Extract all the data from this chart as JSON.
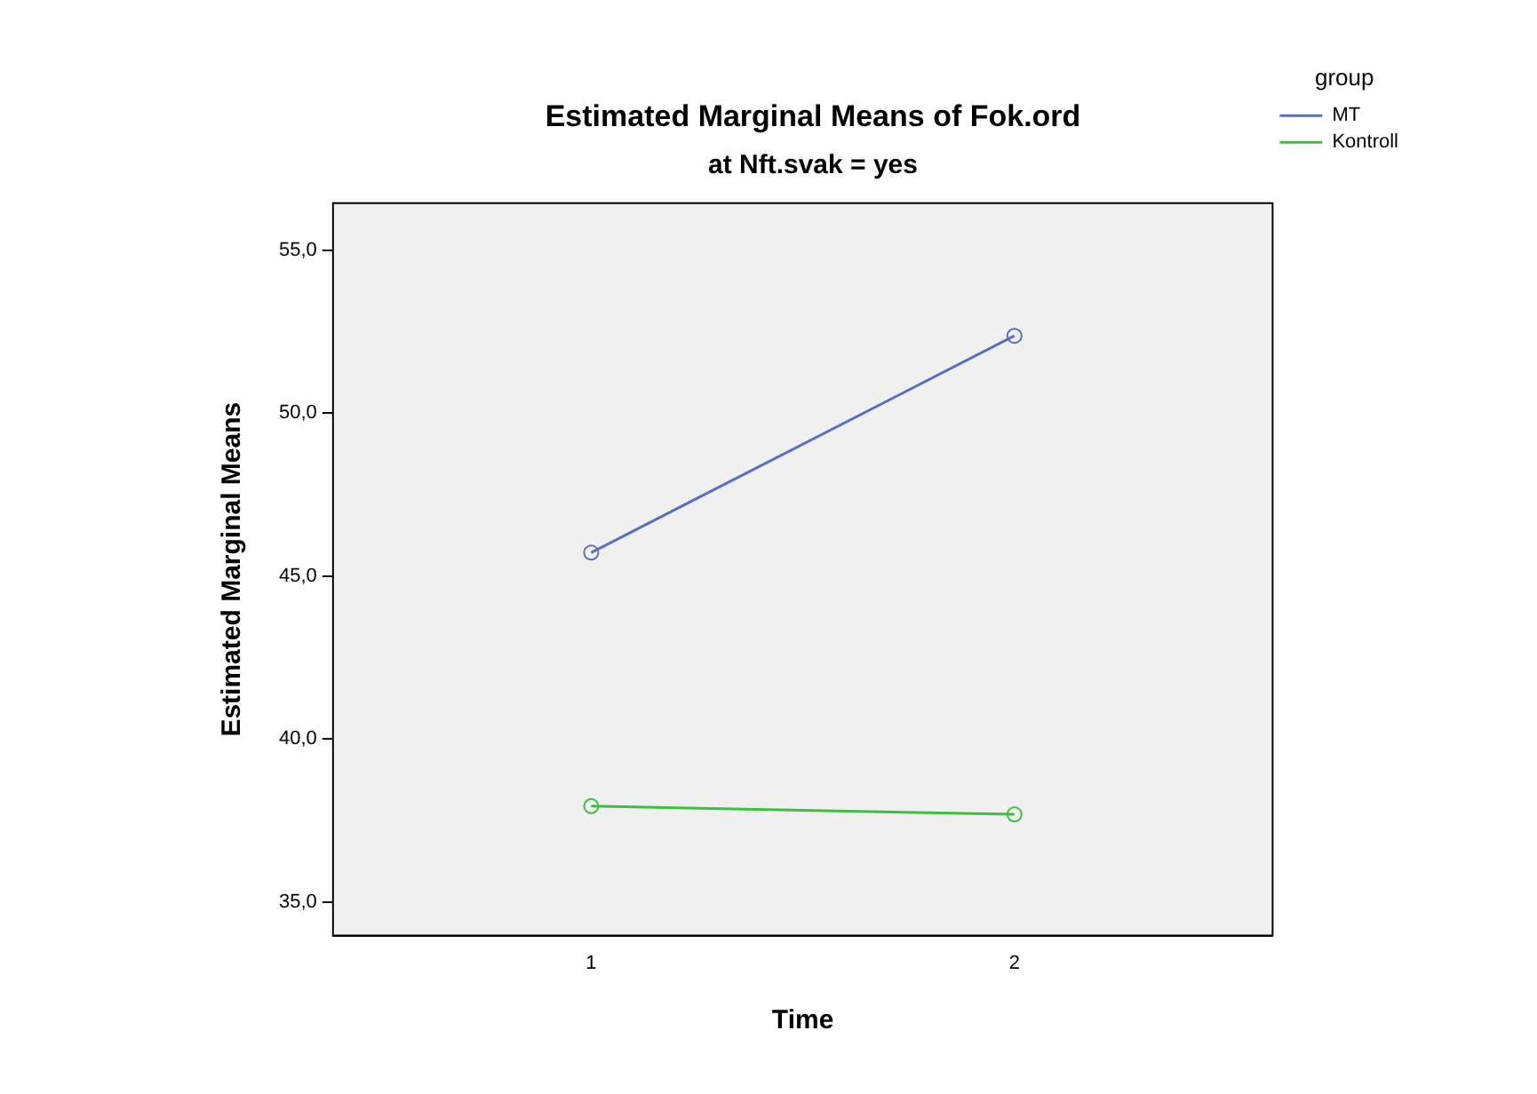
{
  "chart_data": {
    "type": "line",
    "title": "Estimated Marginal Means of Fok.ord",
    "subtitle": "at Nft.svak = yes",
    "xlabel": "Time",
    "ylabel": "Estimated Marginal Means",
    "legend_title": "group",
    "x": [
      1,
      2
    ],
    "series": [
      {
        "name": "MT",
        "color": "#5a6fbf",
        "values": [
          45.72,
          52.37
        ]
      },
      {
        "name": "Kontroll",
        "color": "#3fbf3f",
        "values": [
          37.94,
          37.69
        ]
      }
    ],
    "xlim": [
      0.39,
      2.61
    ],
    "xticks": [
      1,
      2
    ],
    "ylim": [
      33.97,
      56.44
    ],
    "yticks": [
      {
        "value": 35,
        "label": "35,0"
      },
      {
        "value": 40,
        "label": "40,0"
      },
      {
        "value": 45,
        "label": "45,0"
      },
      {
        "value": 50,
        "label": "50,0"
      },
      {
        "value": 55,
        "label": "55,0"
      }
    ],
    "grid": false,
    "legend": "top right",
    "marker": "circle",
    "line_style": "solid"
  }
}
